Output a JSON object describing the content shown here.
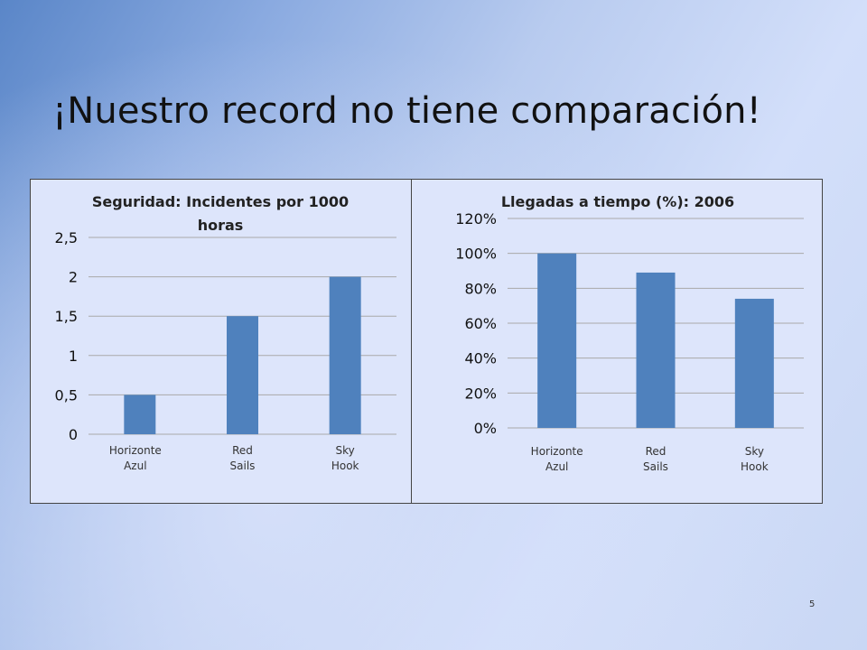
{
  "slide": {
    "title": "¡Nuestro record no tiene comparación!",
    "page_number": "5",
    "bar_color": "#4f81bd"
  },
  "chart_data": [
    {
      "type": "bar",
      "title": "Seguridad: Incidentes por 1000 horas",
      "title_lines": [
        "Seguridad: Incidentes por 1000",
        "horas"
      ],
      "categories": [
        "Horizonte Azul",
        "Red Sails",
        "Sky Hook"
      ],
      "category_lines": [
        [
          "Horizonte",
          "Azul"
        ],
        [
          "Red",
          "Sails"
        ],
        [
          "Sky",
          "Hook"
        ]
      ],
      "values": [
        0.5,
        1.5,
        2.0
      ],
      "ylim": [
        0,
        2.5
      ],
      "yticks": [
        0,
        0.5,
        1,
        1.5,
        2,
        2.5
      ],
      "ytick_labels": [
        "0",
        "0,5",
        "1",
        "1,5",
        "2",
        "2,5"
      ],
      "grid": true,
      "xlabel": "",
      "ylabel": ""
    },
    {
      "type": "bar",
      "title": "Llegadas a tiempo (%): 2006",
      "title_lines": [
        "Llegadas a tiempo (%): 2006"
      ],
      "categories": [
        "Horizonte Azul",
        "Red Sails",
        "Sky Hook"
      ],
      "category_lines": [
        [
          "Horizonte",
          "Azul"
        ],
        [
          "Red",
          "Sails"
        ],
        [
          "Sky",
          "Hook"
        ]
      ],
      "values": [
        1.0,
        0.89,
        0.74
      ],
      "ylim": [
        0,
        1.2
      ],
      "yticks": [
        0,
        0.2,
        0.4,
        0.6,
        0.8,
        1.0,
        1.2
      ],
      "ytick_labels": [
        "0%",
        "20%",
        "40%",
        "60%",
        "80%",
        "100%",
        "120%"
      ],
      "grid": true,
      "xlabel": "",
      "ylabel": ""
    }
  ]
}
